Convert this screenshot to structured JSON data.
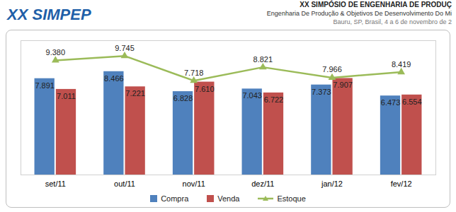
{
  "header": {
    "logo": "XX SIMPEP",
    "lines": [
      "XX SIMPÓSIO DE ENGENHARIA DE PRODUÇ",
      "Engenharia De Produção & Objetivos De Desenvolvimento Do Mi",
      "Bauru, SP, Brasil, 4 a 6 de novembro de 2"
    ]
  },
  "chart_data": {
    "type": "bar",
    "categories": [
      "set/11",
      "out/11",
      "nov/11",
      "dez/11",
      "jan/12",
      "fev/12"
    ],
    "series": [
      {
        "name": "Compra",
        "type": "bar",
        "color": "#4f81bd",
        "values": [
          7891,
          8466,
          6828,
          7043,
          7373,
          6473
        ],
        "value_labels": [
          "7.891",
          "8.466",
          "6.828",
          "7.043",
          "7.373",
          "6.473"
        ]
      },
      {
        "name": "Venda",
        "type": "bar",
        "color": "#c0504d",
        "values": [
          7011,
          7221,
          7610,
          6722,
          7907,
          6554
        ],
        "value_labels": [
          "7.011",
          "7.221",
          "7.610",
          "6.722",
          "7.907",
          "6.554"
        ]
      },
      {
        "name": "Estoque",
        "type": "line",
        "color": "#9bbb59",
        "marker": "triangle",
        "values": [
          9380,
          9745,
          7718,
          8821,
          7966,
          8419
        ],
        "value_labels": [
          "9.380",
          "9.745",
          "7.718",
          "8.821",
          "7.966",
          "8.419"
        ]
      }
    ],
    "ylim": [
      0,
      11000
    ],
    "grid": false,
    "legend": "bottom",
    "data_labels": true,
    "tick_labels": "x"
  }
}
